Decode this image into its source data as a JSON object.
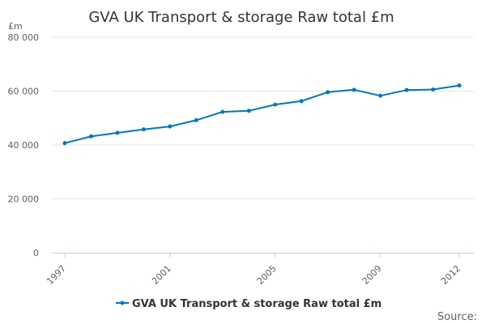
{
  "chart_data": {
    "type": "line",
    "title": "GVA UK Transport & storage Raw total £m",
    "ylabel": "£m",
    "xlabel": "",
    "ylim": [
      0,
      80000
    ],
    "y_ticks": [
      "0",
      "20 000",
      "40 000",
      "60 000",
      "80 000"
    ],
    "x_tick_labels": [
      "1997",
      "2001",
      "2005",
      "2009",
      "2012"
    ],
    "grid": true,
    "legend_position": "bottom",
    "series": [
      {
        "name": "GVA UK Transport & storage Raw total £m",
        "color": "#0077bb",
        "x": [
          1997,
          1998,
          1999,
          2000,
          2001,
          2002,
          2003,
          2004,
          2005,
          2006,
          2007,
          2008,
          2009,
          2010,
          2011,
          2012
        ],
        "values": [
          40700,
          43200,
          44500,
          45800,
          46900,
          49200,
          52300,
          52700,
          55000,
          56300,
          59600,
          60500,
          58300,
          60400,
          60600,
          62100
        ]
      }
    ]
  },
  "footer": {
    "source_label": "Source:"
  }
}
